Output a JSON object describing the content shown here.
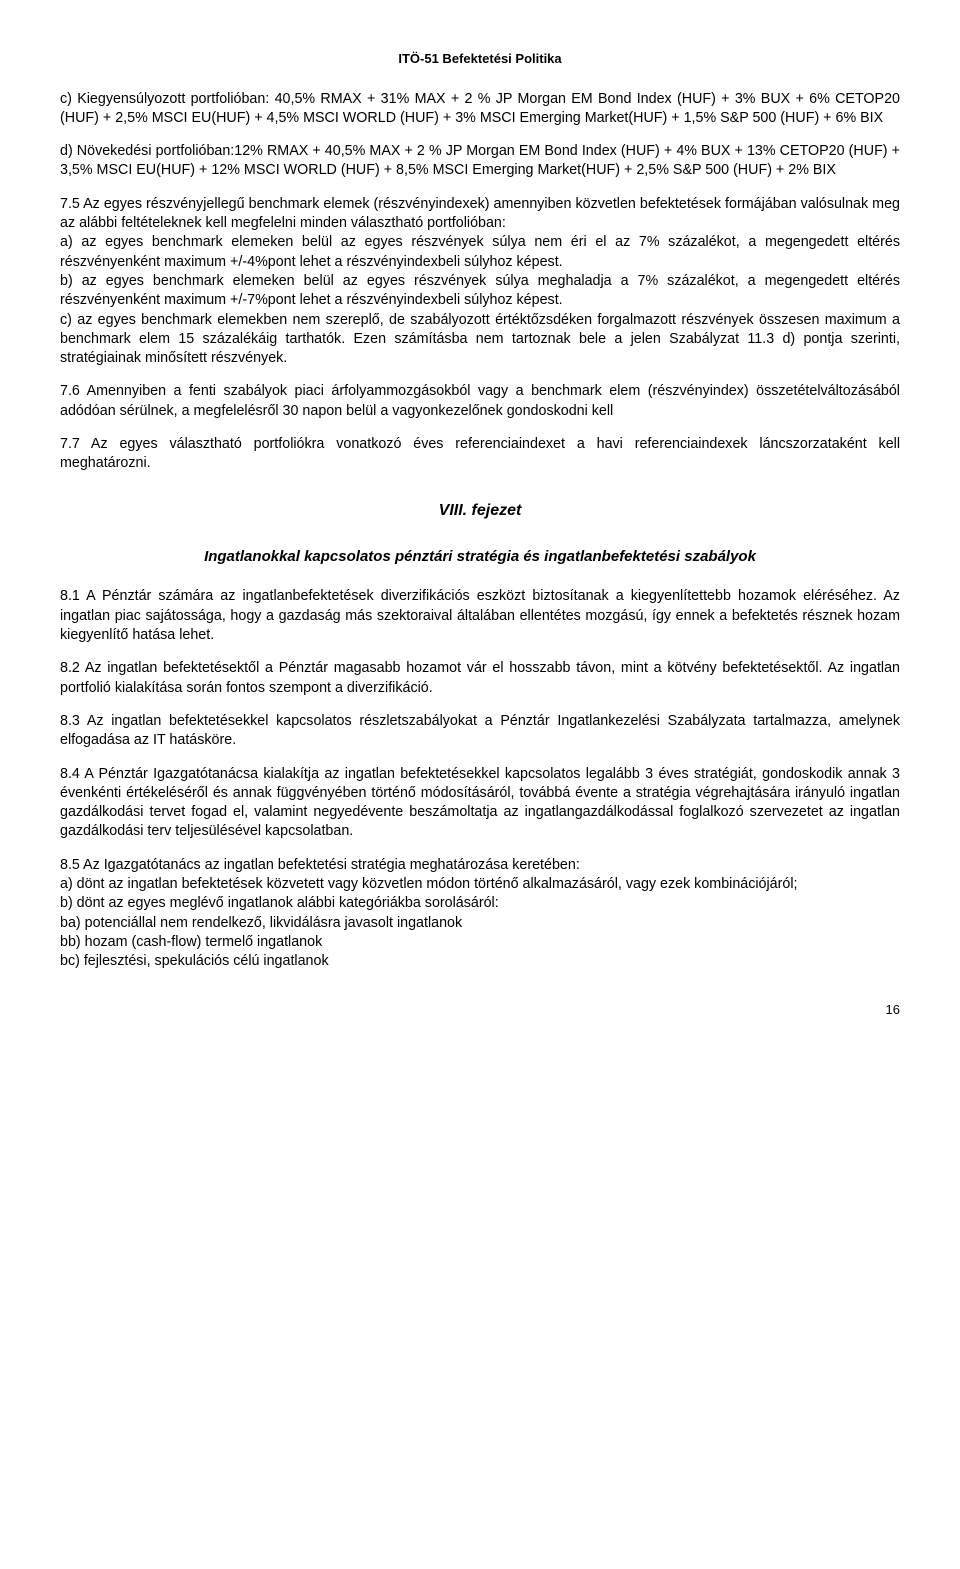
{
  "header": "ITÖ-51 Befektetési Politika",
  "para_c": "c) Kiegyensúlyozott portfolióban: 40,5% RMAX + 31% MAX + 2 % JP Morgan EM Bond Index (HUF)  + 3% BUX + 6% CETOP20 (HUF) + 2,5% MSCI EU(HUF) + 4,5% MSCI WORLD (HUF) + 3% MSCI Emerging Market(HUF) + 1,5% S&P 500 (HUF) + 6% BIX",
  "para_d": "d) Növekedési portfolióban:12% RMAX + 40,5% MAX + 2 % JP Morgan EM Bond Index (HUF) + 4% BUX + 13% CETOP20 (HUF) + 3,5% MSCI EU(HUF) + 12% MSCI WORLD (HUF) + 8,5% MSCI Emerging Market(HUF) + 2,5% S&P 500 (HUF) + 2% BIX",
  "para_7_5": "7.5 Az egyes részvényjellegű benchmark elemek (részvényindexek) amennyiben közvetlen befektetések formájában valósulnak meg az alábbi feltételeknek kell megfelelni minden választható portfolióban:",
  "para_7_5a": "a) az egyes benchmark elemeken belül az egyes részvények súlya nem éri el az 7% százalékot, a megengedett eltérés részvényenként maximum +/-4%pont lehet a részvényindexbeli súlyhoz képest.",
  "para_7_5b": "b) az egyes benchmark elemeken belül az egyes részvények súlya meghaladja a 7% százalékot, a megengedett eltérés részvényenként maximum +/-7%pont lehet a részvényindexbeli súlyhoz képest.",
  "para_7_5c": "c) az egyes benchmark elemekben nem szereplő, de szabályozott értéktőzsdéken forgalmazott részvények összesen maximum a benchmark elem 15 százalékáig tarthatók. Ezen számításba nem tartoznak bele a jelen Szabályzat 11.3 d) pontja szerinti, stratégiainak minősített részvények.",
  "para_7_6": "7.6 Amennyiben a fenti szabályok piaci árfolyammozgásokból vagy a benchmark elem (részvényindex) összetételváltozásából adódóan sérülnek, a megfelelésről 30 napon belül a vagyonkezelőnek gondoskodni kell",
  "para_7_7": "7.7 Az egyes választható portfoliókra vonatkozó éves referenciaindexet a havi referenciaindexek láncszorzataként kell meghatározni.",
  "chapter": "VIII. fejezet",
  "chapter_sub": "Ingatlanokkal kapcsolatos pénztári stratégia és ingatlanbefektetési szabályok",
  "para_8_1": "8.1 A Pénztár számára az ingatlanbefektetések diverzifikációs eszközt biztosítanak a kiegyenlítettebb hozamok eléréséhez. Az ingatlan piac sajátossága, hogy a gazdaság más szektoraival általában ellentétes mozgású, így ennek a befektetés résznek hozam kiegyenlítő hatása lehet.",
  "para_8_2": "8.2 Az ingatlan befektetésektől a Pénztár magasabb hozamot vár el hosszabb távon, mint a kötvény befektetésektől. Az ingatlan portfolió kialakítása során fontos szempont a diverzifikáció.",
  "para_8_3": "8.3 Az ingatlan befektetésekkel kapcsolatos részletszabályokat a Pénztár Ingatlankezelési Szabályzata tartalmazza, amelynek elfogadása az IT hatásköre.",
  "para_8_4": "8.4 A Pénztár Igazgatótanácsa kialakítja az ingatlan befektetésekkel kapcsolatos legalább 3 éves stratégiát, gondoskodik annak 3 évenkénti értékeléséről és annak függvényében történő módosításáról, továbbá évente a stratégia végrehajtására irányuló ingatlan gazdálkodási tervet fogad el, valamint negyedévente beszámoltatja az ingatlangazdálkodással foglalkozó szervezetet az ingatlan gazdálkodási terv teljesülésével kapcsolatban.",
  "para_8_5": "8.5 Az Igazgatótanács az ingatlan befektetési stratégia meghatározása keretében:",
  "para_8_5a": "a) dönt az ingatlan befektetések közvetett vagy közvetlen módon történő alkalmazásáról, vagy ezek kombinációjáról;",
  "para_8_5b": "b) dönt az egyes meglévő ingatlanok alábbi kategóriákba sorolásáról:",
  "para_8_5ba": "ba) potenciállal nem rendelkező, likvidálásra javasolt ingatlanok",
  "para_8_5bb": "bb) hozam (cash-flow) termelő ingatlanok",
  "para_8_5bc": "bc) fejlesztési, spekulációs célú ingatlanok",
  "page_num": "16"
}
